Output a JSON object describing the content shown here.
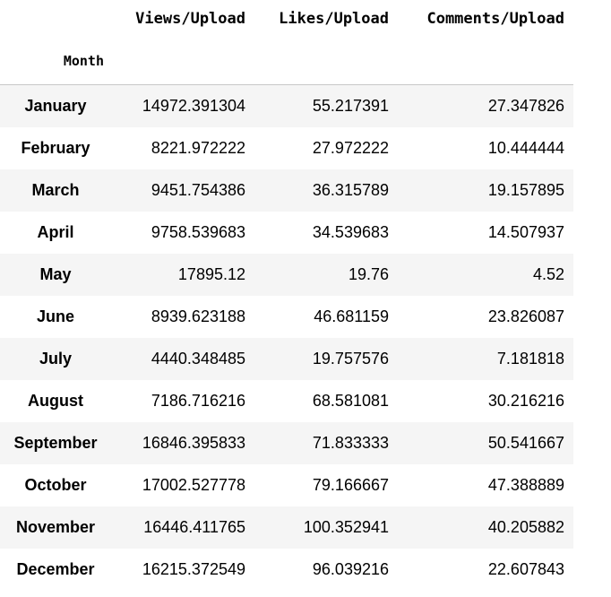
{
  "table": {
    "columns": [
      "Views/Upload",
      "Likes/Upload",
      "Comments/Upload"
    ],
    "index_name": "Month",
    "rows": [
      {
        "month": "January",
        "views": "14972.391304",
        "likes": "55.217391",
        "comments": "27.347826"
      },
      {
        "month": "February",
        "views": "8221.972222",
        "likes": "27.972222",
        "comments": "10.444444"
      },
      {
        "month": "March",
        "views": "9451.754386",
        "likes": "36.315789",
        "comments": "19.157895"
      },
      {
        "month": "April",
        "views": "9758.539683",
        "likes": "34.539683",
        "comments": "14.507937"
      },
      {
        "month": "May",
        "views": "17895.12",
        "likes": "19.76",
        "comments": "4.52"
      },
      {
        "month": "June",
        "views": "8939.623188",
        "likes": "46.681159",
        "comments": "23.826087"
      },
      {
        "month": "July",
        "views": "4440.348485",
        "likes": "19.757576",
        "comments": "7.181818"
      },
      {
        "month": "August",
        "views": "7186.716216",
        "likes": "68.581081",
        "comments": "30.216216"
      },
      {
        "month": "September",
        "views": "16846.395833",
        "likes": "71.833333",
        "comments": "50.541667"
      },
      {
        "month": "October",
        "views": "17002.527778",
        "likes": "79.166667",
        "comments": "47.388889"
      },
      {
        "month": "November",
        "views": "16446.411765",
        "likes": "100.352941",
        "comments": "40.205882"
      },
      {
        "month": "December",
        "views": "16215.372549",
        "likes": "96.039216",
        "comments": "22.607843"
      }
    ]
  }
}
